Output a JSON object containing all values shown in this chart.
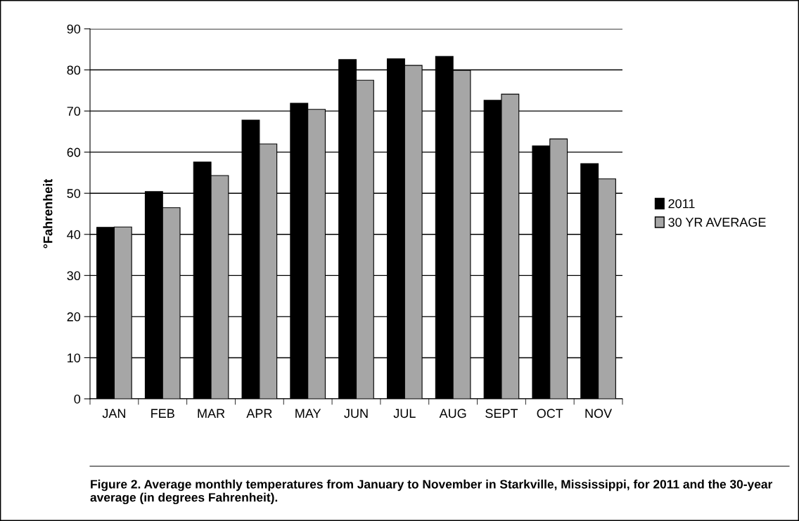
{
  "chart_data": {
    "type": "bar",
    "ylabel": "°Fahrenheit",
    "categories": [
      "JAN",
      "FEB",
      "MAR",
      "APR",
      "MAY",
      "JUN",
      "JUL",
      "AUG",
      "SEPT",
      "OCT",
      "NOV"
    ],
    "series": [
      {
        "name": "2011",
        "color": "#000000",
        "values": [
          41.7,
          50.4,
          57.6,
          67.8,
          71.9,
          82.5,
          82.7,
          83.3,
          72.6,
          61.5,
          57.2
        ]
      },
      {
        "name": "30 YR AVERAGE",
        "color": "#a6a6a6",
        "values": [
          41.8,
          46.5,
          54.3,
          62.0,
          70.4,
          77.5,
          81.1,
          79.9,
          74.1,
          63.2,
          53.5
        ]
      }
    ],
    "ylim": [
      0,
      90
    ],
    "yticks": [
      0,
      10,
      20,
      30,
      40,
      50,
      60,
      70,
      80,
      90
    ],
    "grid": "y",
    "legend": "right",
    "annotations": [
      "Figure 2. Average monthly temperatures from January to November in Starkville, Mississippi, for 2011 and the 30-year average (in degrees Fahrenheit)."
    ]
  }
}
